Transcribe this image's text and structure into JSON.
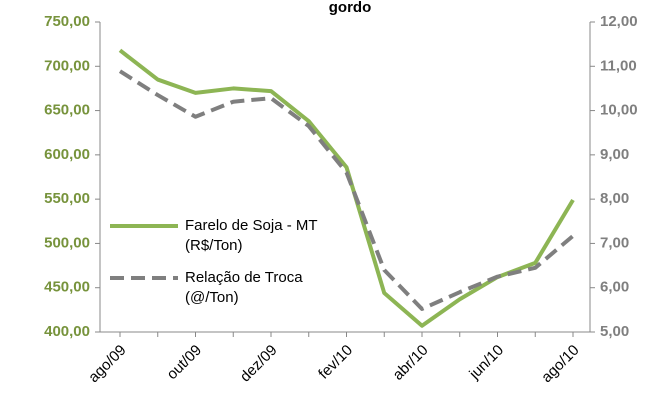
{
  "chart_data": {
    "type": "line",
    "title": "gordo",
    "categories": [
      "ago/09",
      null,
      "out/09",
      null,
      "dez/09",
      null,
      "fev/10",
      null,
      "abr/10",
      null,
      "jun/10",
      null,
      "ago/10"
    ],
    "series": [
      {
        "name": "Farelo de Soja - MT (R$/Ton)",
        "color": "#8db554",
        "values": [
          718,
          685,
          670,
          675,
          672,
          638,
          586,
          444,
          407,
          437,
          462,
          478,
          549
        ]
      },
      {
        "name": "Relação de Troca (@/Ton)",
        "color": "#7f7f7f",
        "axis": "y2",
        "dashed": true,
        "values": [
          10.89,
          10.35,
          9.86,
          10.2,
          10.28,
          9.65,
          8.6,
          6.4,
          5.52,
          5.9,
          6.25,
          6.45,
          7.17
        ]
      }
    ],
    "ylim": [
      400,
      750
    ],
    "yticks": [
      {
        "value": 400,
        "label": "400,00"
      },
      {
        "value": 450,
        "label": "450,00"
      },
      {
        "value": 500,
        "label": "500,00"
      },
      {
        "value": 550,
        "label": "550,00"
      },
      {
        "value": 600,
        "label": "600,00"
      },
      {
        "value": 650,
        "label": "650,00"
      },
      {
        "value": 700,
        "label": "700,00"
      },
      {
        "value": 750,
        "label": "750,00"
      }
    ],
    "y2lim": [
      5,
      12
    ],
    "y2ticks": [
      {
        "value": 5,
        "label": "5,00"
      },
      {
        "value": 6,
        "label": "6,00"
      },
      {
        "value": 7,
        "label": "7,00"
      },
      {
        "value": 8,
        "label": "8,00"
      },
      {
        "value": 9,
        "label": "9,00"
      },
      {
        "value": 10,
        "label": "10,00"
      },
      {
        "value": 11,
        "label": "11,00"
      },
      {
        "value": 12,
        "label": "12,00"
      }
    ],
    "ytick_color": "#77933c",
    "y2tick_color": "#7f7f7f"
  }
}
